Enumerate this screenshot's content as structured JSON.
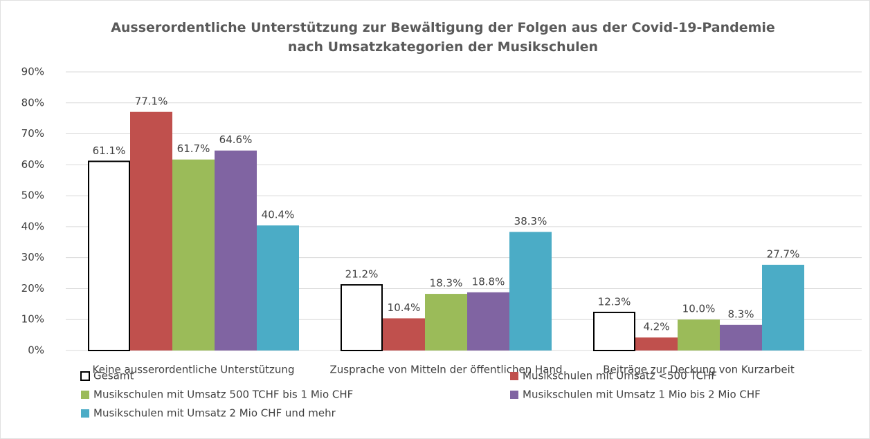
{
  "chart_data": {
    "type": "bar",
    "title": "Ausserordentliche Unterstützung zur Bewältigung der Folgen aus der Covid-19-Pandemie nach Umsatzkategorien der Musikschulen",
    "categories": [
      "Keine ausserordentliche Unterstützung",
      "Zusprache von Mitteln der öffentlichen Hand",
      "Beiträge zur Deckung von Kurzarbeit"
    ],
    "series": [
      {
        "name": "Gesamt",
        "color": "#ffffff",
        "edgecolor": "#000000",
        "values": [
          61.1,
          21.2,
          12.3
        ],
        "value_labels": [
          "61.1%",
          "21.2%",
          "12.3%"
        ]
      },
      {
        "name": "Musikschulen mit Umsatz <500 TCHF",
        "color": "#c0504d",
        "values": [
          77.1,
          10.4,
          4.2
        ],
        "value_labels": [
          "77.1%",
          "10.4%",
          "4.2%"
        ]
      },
      {
        "name": "Musikschulen mit Umsatz 500 TCHF bis 1 Mio CHF",
        "color": "#9bbb59",
        "values": [
          61.7,
          18.3,
          10.0
        ],
        "value_labels": [
          "61.7%",
          "18.3%",
          "10.0%"
        ]
      },
      {
        "name": "Musikschulen mit Umsatz 1 Mio bis 2 Mio CHF",
        "color": "#8064a2",
        "values": [
          64.6,
          18.8,
          8.3
        ],
        "value_labels": [
          "64.6%",
          "18.8%",
          "8.3%"
        ]
      },
      {
        "name": "Musikschulen mit Umsatz 2 Mio CHF und mehr",
        "color": "#4bacc6",
        "values": [
          40.4,
          38.3,
          27.7
        ],
        "value_labels": [
          "40.4%",
          "38.3%",
          "27.7%"
        ]
      }
    ],
    "ylim": [
      0,
      90
    ],
    "yticks": [
      {
        "value": 0,
        "label": "0%"
      },
      {
        "value": 10,
        "label": "10%"
      },
      {
        "value": 20,
        "label": "20%"
      },
      {
        "value": 30,
        "label": "30%"
      },
      {
        "value": 40,
        "label": "40%"
      },
      {
        "value": 50,
        "label": "50%"
      },
      {
        "value": 60,
        "label": "60%"
      },
      {
        "value": 70,
        "label": "70%"
      },
      {
        "value": 80,
        "label": "80%"
      },
      {
        "value": 90,
        "label": "90%"
      }
    ],
    "grid": true,
    "legend": "bottom"
  }
}
